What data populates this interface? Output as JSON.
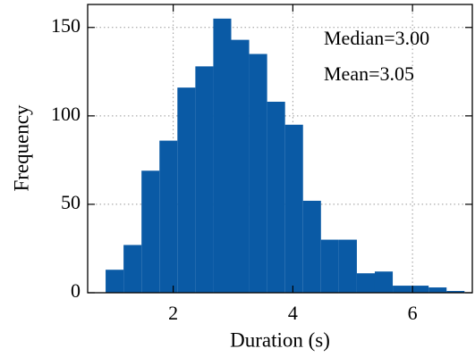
{
  "chart_data": {
    "type": "histogram",
    "x_label": "Duration (s)",
    "y_label": "Frequency",
    "annotations": [
      "Median=3.00",
      "Mean=3.05"
    ],
    "bins": [
      0.87,
      1.17,
      1.47,
      1.77,
      2.07,
      2.37,
      2.67,
      2.97,
      3.27,
      3.57,
      3.87,
      4.17,
      4.47,
      4.77,
      5.07,
      5.37,
      5.67,
      5.97,
      6.27,
      6.57,
      6.87
    ],
    "values": [
      13,
      27,
      69,
      86,
      116,
      128,
      155,
      143,
      135,
      108,
      95,
      52,
      30,
      30,
      11,
      12,
      4,
      4,
      3,
      1
    ],
    "color": "#0a5aa5",
    "xlim": [
      0.57,
      7.0
    ],
    "ylim": [
      0,
      163
    ],
    "xticks": [
      2,
      4,
      6
    ],
    "yticks": [
      0,
      50,
      100,
      150
    ],
    "grid": true
  }
}
